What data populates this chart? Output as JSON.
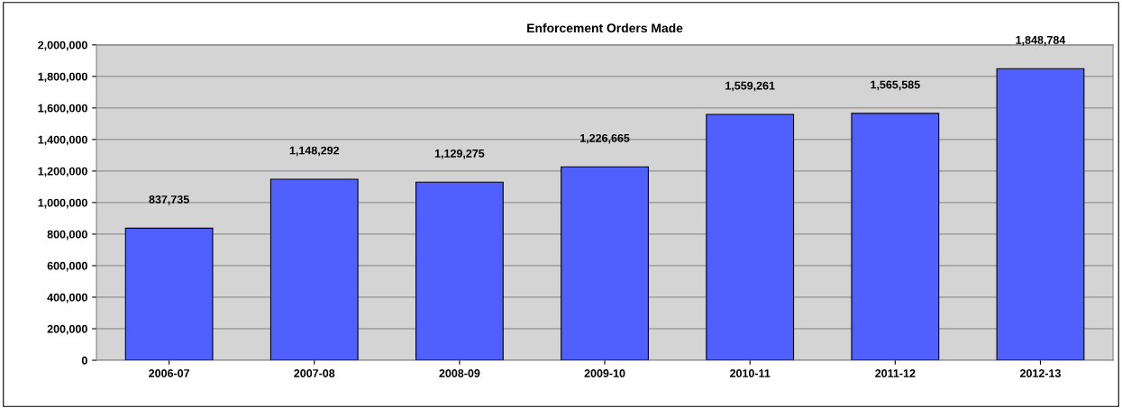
{
  "chart_data": {
    "type": "bar",
    "title": "Enforcement Orders Made",
    "categories": [
      "2006-07",
      "2007-08",
      "2008-09",
      "2009-10",
      "2010-11",
      "2011-12",
      "2012-13"
    ],
    "values": [
      837735,
      1148292,
      1129275,
      1226665,
      1559261,
      1565585,
      1848784
    ],
    "value_labels": [
      "837,735",
      "1,148,292",
      "1,129,275",
      "1,226,665",
      "1,559,261",
      "1,565,585",
      "1,848,784"
    ],
    "color": "#5060ff",
    "ylim": [
      0,
      2000000
    ],
    "yticks": [
      {
        "value": 0,
        "label": "0"
      },
      {
        "value": 200000,
        "label": "200,000"
      },
      {
        "value": 400000,
        "label": "400,000"
      },
      {
        "value": 600000,
        "label": "600,000"
      },
      {
        "value": 800000,
        "label": "800,000"
      },
      {
        "value": 1000000,
        "label": "1,000,000"
      },
      {
        "value": 1200000,
        "label": "1,200,000"
      },
      {
        "value": 1400000,
        "label": "1,400,000"
      },
      {
        "value": 1600000,
        "label": "1,600,000"
      },
      {
        "value": 1800000,
        "label": "1,800,000"
      },
      {
        "value": 2000000,
        "label": "2,000,000"
      }
    ],
    "grid": "y",
    "legend": false
  }
}
